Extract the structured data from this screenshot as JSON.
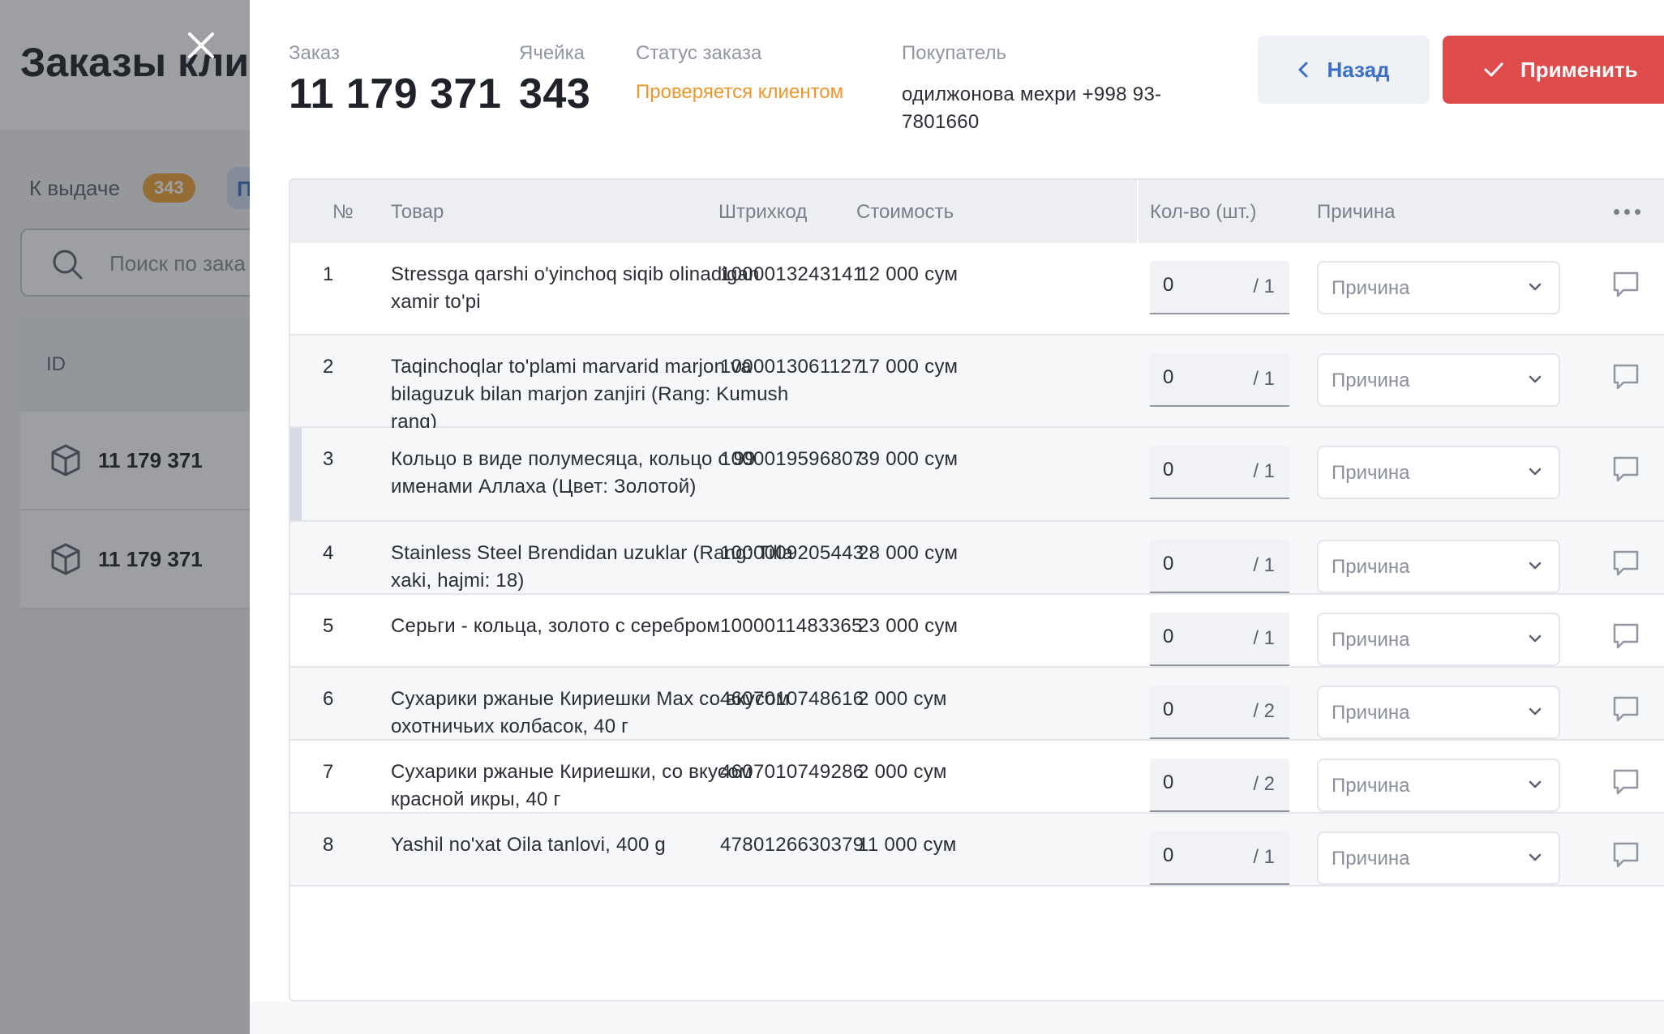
{
  "background": {
    "title": "Заказы кли",
    "tab_label": "К выдаче",
    "tab_badge": "343",
    "tab2_label": "П",
    "search_placeholder": "Поиск по зака",
    "table_header_id": "ID",
    "rows": [
      {
        "id": "11 179 371"
      },
      {
        "id": "11 179 371"
      }
    ]
  },
  "drawer": {
    "order_label": "Заказ",
    "order_value": "11 179 371",
    "cell_label": "Ячейка",
    "cell_value": "343",
    "status_label": "Статус заказа",
    "status_value": "Проверяется клиентом",
    "status_color": "#f0952a",
    "buyer_label": "Покупатель",
    "buyer_value": "одилжонова мехри +998 93-7801660",
    "back_label": "Назад",
    "apply_label": "Применить",
    "apply_color": "#df4a4a"
  },
  "table": {
    "headers": {
      "num": "№",
      "product": "Товар",
      "barcode": "Штрихкод",
      "price": "Стоимость",
      "qty": "Кол-во (шт.)",
      "reason": "Причина"
    },
    "reason_placeholder": "Причина",
    "rows": [
      {
        "num": "1",
        "product": "Stressga qarshi o'yinchoq siqib olinadigan xamir to'pi",
        "barcode": "1000013243141",
        "price": "12 000 сум",
        "qty": "0",
        "total": "/ 1"
      },
      {
        "num": "2",
        "product": "Taqinchoqlar to'plami marvarid marjon va bilaguzuk bilan marjon zanjiri (Rang: Kumush rang)",
        "barcode": "1000013061127",
        "price": "17 000 сум",
        "qty": "0",
        "total": "/ 1"
      },
      {
        "num": "3",
        "product": "Кольцо в виде полумесяца, кольцо с 99 именами Аллаха (Цвет: Золотой)",
        "barcode": "1000019596807",
        "price": "39 000 сум",
        "qty": "0",
        "total": "/ 1"
      },
      {
        "num": "4",
        "product": "Stainless Steel Brendidan uzuklar (Rang: Tilla xaki, hajmi: 18)",
        "barcode": "1000009205443",
        "price": "28 000 сум",
        "qty": "0",
        "total": "/ 1"
      },
      {
        "num": "5",
        "product": "Серьги - кольца, золото с серебром",
        "barcode": "1000011483365",
        "price": "23 000 сум",
        "qty": "0",
        "total": "/ 1"
      },
      {
        "num": "6",
        "product": "Сухарики ржаные Кириешки Max со вкусом охотничьих колбасок, 40 г",
        "barcode": "4607010748616",
        "price": "2 000 сум",
        "qty": "0",
        "total": "/ 2"
      },
      {
        "num": "7",
        "product": "Сухарики ржаные Кириешки, со вкусом красной икры, 40 г",
        "barcode": "4607010749286",
        "price": "2 000 сум",
        "qty": "0",
        "total": "/ 2"
      },
      {
        "num": "8",
        "product": "Yashil no'xat Oila tanlovi, 400 g",
        "barcode": "4780126630379",
        "price": "11 000 сум",
        "qty": "0",
        "total": "/ 1"
      }
    ]
  }
}
